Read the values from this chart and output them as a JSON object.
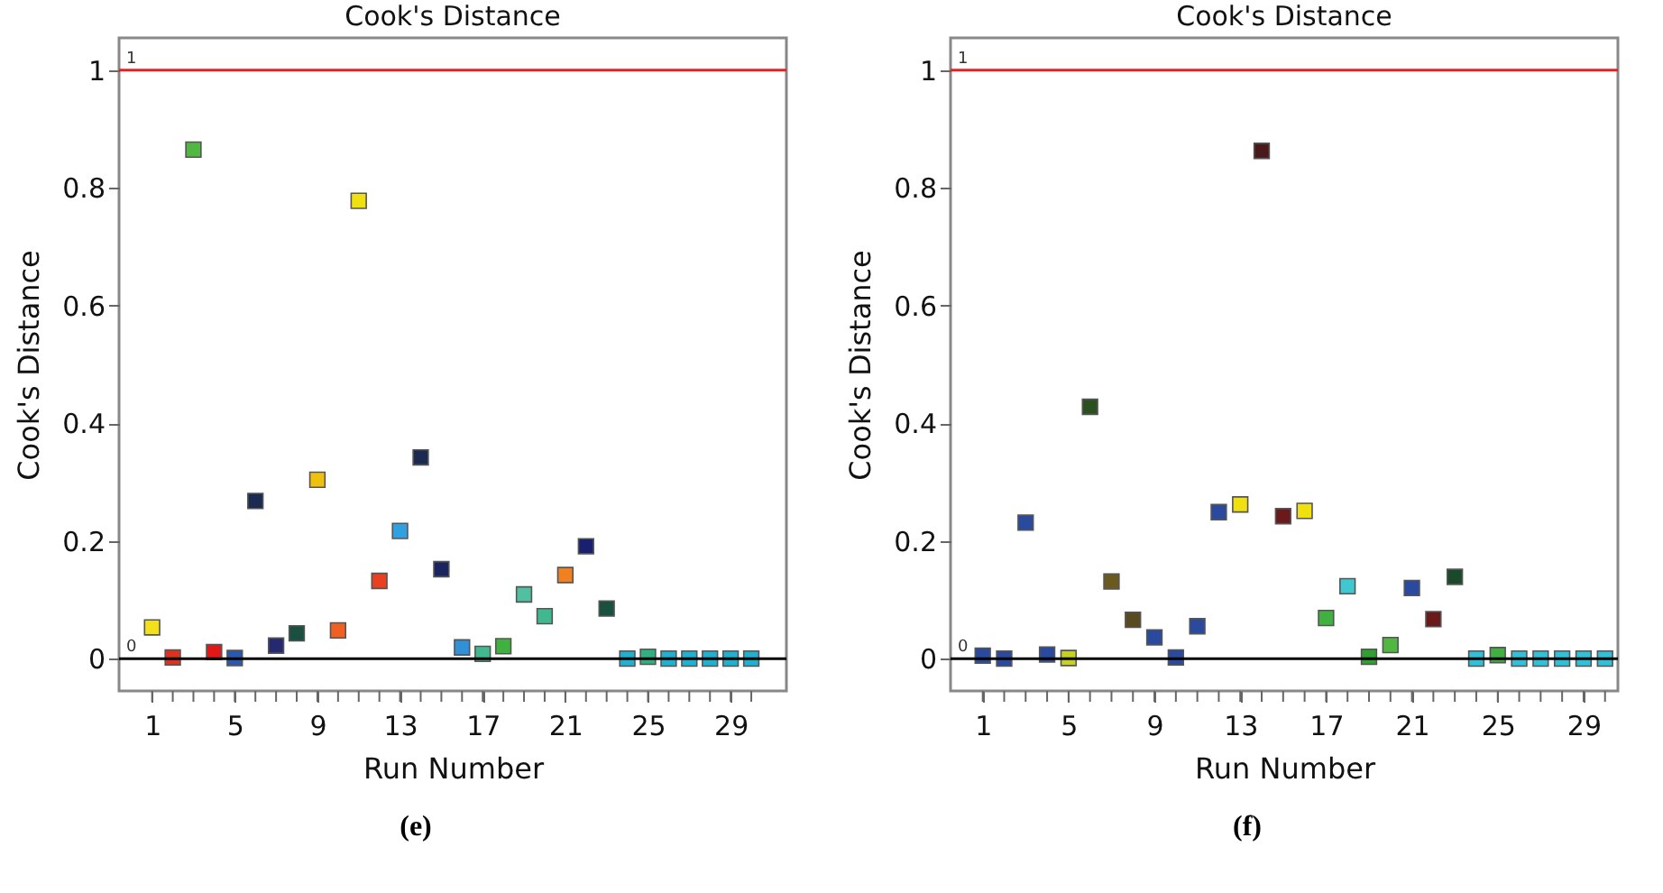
{
  "chart_data": [
    {
      "type": "scatter",
      "title": "Cook's Distance",
      "xlabel": "Run Number",
      "ylabel": "Cook's Distance",
      "annotations": [
        "(e)"
      ],
      "marker": "square",
      "x": [
        1,
        2,
        3,
        4,
        5,
        6,
        7,
        8,
        9,
        10,
        11,
        12,
        13,
        14,
        15,
        16,
        17,
        18,
        19,
        20,
        21,
        22,
        23,
        24,
        25,
        26,
        27,
        28,
        29,
        30
      ],
      "series": [
        {
          "values": [
            0.053,
            0.002,
            0.865,
            0.011,
            0.001,
            0.268,
            0.022,
            0.043,
            0.304,
            0.048,
            0.778,
            0.132,
            0.217,
            0.342,
            0.152,
            0.019,
            0.008,
            0.021,
            0.109,
            0.072,
            0.142,
            0.191,
            0.085,
            0.0,
            0.003,
            0.0,
            0.0,
            0.0,
            0.0,
            0.0
          ],
          "colors": [
            "#f2e01a",
            "#e03020",
            "#50b840",
            "#e01818",
            "#2a58b0",
            "#1a2a50",
            "#252a70",
            "#1a5040",
            "#f0c010",
            "#f06020",
            "#f0e010",
            "#e84020",
            "#30a0e0",
            "#1a2a50",
            "#1a2560",
            "#3090d8",
            "#40b890",
            "#40b040",
            "#50c0a0",
            "#40b890",
            "#f08020",
            "#1a2070",
            "#1a5040",
            "#20b0d0",
            "#30b080",
            "#20b0d0",
            "#20b0d0",
            "#20b0d0",
            "#20b0d0",
            "#20b0d0"
          ]
        }
      ],
      "xlim": [
        -0.6,
        31.7
      ],
      "ylim": [
        -0.055,
        1.055
      ],
      "xticks": [
        {
          "value": 1,
          "label": "1"
        },
        {
          "value": 2,
          "label": null
        },
        {
          "value": 3,
          "label": null
        },
        {
          "value": 4,
          "label": null
        },
        {
          "value": 5,
          "label": "5"
        },
        {
          "value": 6,
          "label": null
        },
        {
          "value": 7,
          "label": null
        },
        {
          "value": 8,
          "label": null
        },
        {
          "value": 9,
          "label": "9"
        },
        {
          "value": 10,
          "label": null
        },
        {
          "value": 11,
          "label": null
        },
        {
          "value": 12,
          "label": null
        },
        {
          "value": 13,
          "label": "13"
        },
        {
          "value": 14,
          "label": null
        },
        {
          "value": 15,
          "label": null
        },
        {
          "value": 16,
          "label": null
        },
        {
          "value": 17,
          "label": "17"
        },
        {
          "value": 18,
          "label": null
        },
        {
          "value": 19,
          "label": null
        },
        {
          "value": 20,
          "label": null
        },
        {
          "value": 21,
          "label": "21"
        },
        {
          "value": 22,
          "label": null
        },
        {
          "value": 23,
          "label": null
        },
        {
          "value": 24,
          "label": null
        },
        {
          "value": 25,
          "label": "25"
        },
        {
          "value": 26,
          "label": null
        },
        {
          "value": 27,
          "label": null
        },
        {
          "value": 28,
          "label": null
        },
        {
          "value": 29,
          "label": "29"
        },
        {
          "value": 30,
          "label": null
        }
      ],
      "yticks": [
        0,
        0.2,
        0.4,
        0.6,
        0.8,
        1
      ],
      "ref_lines": [
        {
          "axis": "y",
          "value": 1,
          "label": "1",
          "color": "#e82020"
        },
        {
          "axis": "y",
          "value": 0,
          "label": "0",
          "color": "#000000"
        }
      ]
    },
    {
      "type": "scatter",
      "title": "Cook's Distance",
      "xlabel": "Run Number",
      "ylabel": "Cook's Distance",
      "annotations": [
        "(f)"
      ],
      "marker": "square",
      "x": [
        1,
        2,
        3,
        4,
        5,
        6,
        7,
        8,
        9,
        10,
        11,
        12,
        13,
        14,
        15,
        16,
        17,
        18,
        19,
        20,
        21,
        22,
        23,
        24,
        25,
        26,
        27,
        28,
        29,
        30
      ],
      "series": [
        {
          "values": [
            0.005,
            0.0,
            0.231,
            0.007,
            0.001,
            0.428,
            0.131,
            0.066,
            0.036,
            0.002,
            0.055,
            0.249,
            0.262,
            0.863,
            0.242,
            0.251,
            0.069,
            0.123,
            0.003,
            0.023,
            0.12,
            0.067,
            0.139,
            0.0,
            0.006,
            0.0,
            0.0,
            0.0,
            0.0,
            0.0
          ],
          "colors": [
            "#2a4aa0",
            "#2a4aa0",
            "#2a4aa0",
            "#2a4aa0",
            "#c8d020",
            "#2a5020",
            "#6a5a20",
            "#5a4a20",
            "#2a4aa0",
            "#2a4aa0",
            "#2a4aa0",
            "#2a4aa0",
            "#f0e010",
            "#4a1a1a",
            "#6a1a1a",
            "#f0e010",
            "#40b040",
            "#40c8d0",
            "#30a030",
            "#50b840",
            "#2a4aa0",
            "#6a1a1a",
            "#1a4a2a",
            "#30c0d8",
            "#40b040",
            "#30c0d8",
            "#30c0d8",
            "#30c0d8",
            "#30c0d8",
            "#30c0d8"
          ]
        }
      ],
      "xlim": [
        -0.5,
        30.6
      ],
      "ylim": [
        -0.055,
        1.055
      ],
      "xticks": [
        {
          "value": 1,
          "label": "1"
        },
        {
          "value": 2,
          "label": null
        },
        {
          "value": 3,
          "label": null
        },
        {
          "value": 4,
          "label": null
        },
        {
          "value": 5,
          "label": "5"
        },
        {
          "value": 6,
          "label": null
        },
        {
          "value": 7,
          "label": null
        },
        {
          "value": 8,
          "label": null
        },
        {
          "value": 9,
          "label": "9"
        },
        {
          "value": 10,
          "label": null
        },
        {
          "value": 11,
          "label": null
        },
        {
          "value": 12,
          "label": null
        },
        {
          "value": 13,
          "label": "13"
        },
        {
          "value": 14,
          "label": null
        },
        {
          "value": 15,
          "label": null
        },
        {
          "value": 16,
          "label": null
        },
        {
          "value": 17,
          "label": "17"
        },
        {
          "value": 18,
          "label": null
        },
        {
          "value": 19,
          "label": null
        },
        {
          "value": 20,
          "label": null
        },
        {
          "value": 21,
          "label": "21"
        },
        {
          "value": 22,
          "label": null
        },
        {
          "value": 23,
          "label": null
        },
        {
          "value": 24,
          "label": null
        },
        {
          "value": 25,
          "label": "25"
        },
        {
          "value": 26,
          "label": null
        },
        {
          "value": 27,
          "label": null
        },
        {
          "value": 28,
          "label": null
        },
        {
          "value": 29,
          "label": "29"
        },
        {
          "value": 30,
          "label": null
        }
      ],
      "yticks": [
        0,
        0.2,
        0.4,
        0.6,
        0.8,
        1
      ],
      "ref_lines": [
        {
          "axis": "y",
          "value": 1,
          "label": "1",
          "color": "#e82020"
        },
        {
          "axis": "y",
          "value": 0,
          "label": "0",
          "color": "#000000"
        }
      ]
    }
  ]
}
